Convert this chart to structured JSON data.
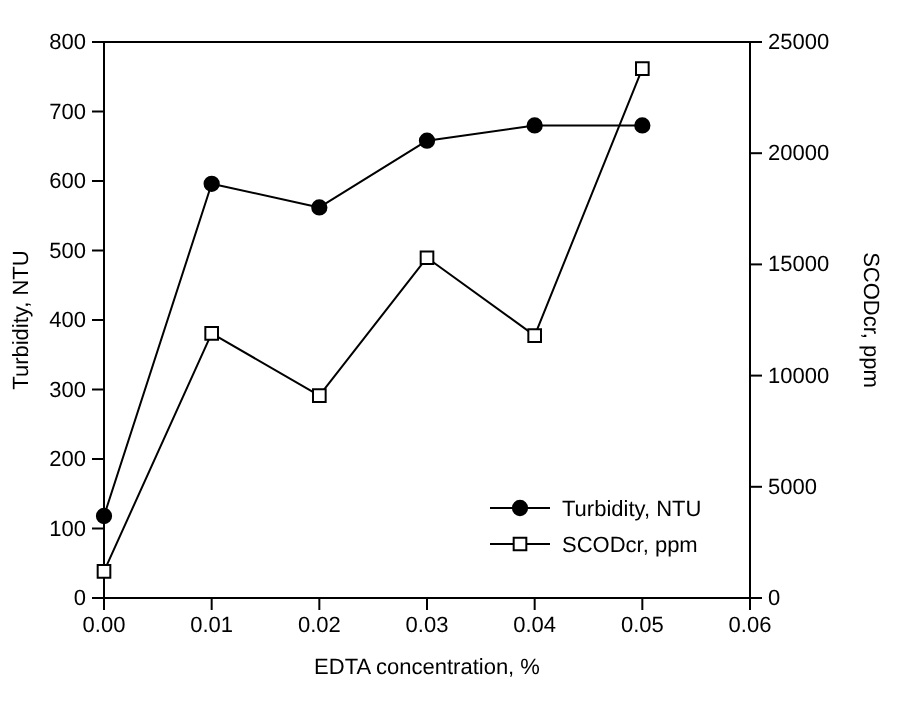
{
  "chart_data": {
    "type": "line",
    "xlabel": "EDTA concentration, %",
    "ylabel": "Turbidity, NTU",
    "y2label": "SCODcr, ppm",
    "x": [
      0,
      0.01,
      0.02,
      0.03,
      0.04,
      0.05
    ],
    "series": [
      {
        "name": "Turbidity, NTU",
        "color": "#000000",
        "marker": "circle",
        "values": [
          118,
          596,
          562,
          658,
          680,
          680
        ]
      },
      {
        "name": "SCODcr, ppm",
        "color": "#000000",
        "marker": "square",
        "axis": "y2",
        "values": [
          1200,
          11900,
          9100,
          15300,
          11800,
          23800
        ]
      }
    ],
    "xlim": [
      0,
      0.06
    ],
    "xticks": [
      {
        "value": 0,
        "label": "0.00"
      },
      {
        "value": 0.01,
        "label": "0.01"
      },
      {
        "value": 0.02,
        "label": "0.02"
      },
      {
        "value": 0.03,
        "label": "0.03"
      },
      {
        "value": 0.04,
        "label": "0.04"
      },
      {
        "value": 0.05,
        "label": "0.05"
      },
      {
        "value": 0.06,
        "label": "0.06"
      }
    ],
    "ylim": [
      0,
      800
    ],
    "yticks": [
      0,
      100,
      200,
      300,
      400,
      500,
      600,
      700,
      800
    ],
    "y2lim": [
      0,
      25000
    ],
    "y2ticks": [
      0,
      5000,
      10000,
      15000,
      20000,
      25000
    ],
    "legend": "bottom right",
    "grid": false,
    "line_style": "solid"
  }
}
